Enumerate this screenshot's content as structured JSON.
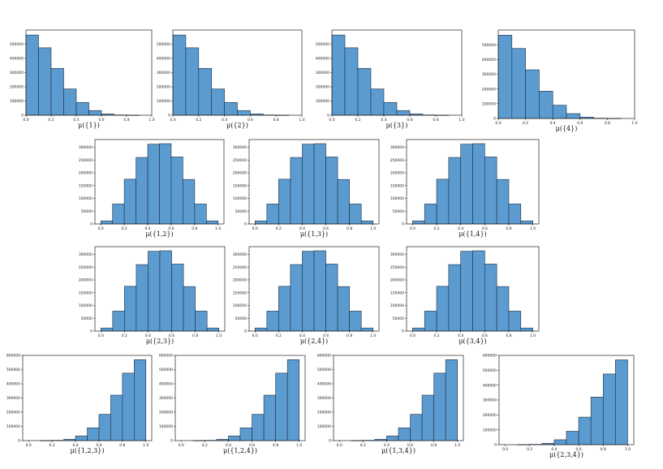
{
  "chart_data": [
    {
      "type": "bar",
      "xlabel": "μ({1})",
      "xticks": [
        "0.0",
        "0.2",
        "0.4",
        "0.6",
        "0.8",
        "1.0"
      ],
      "yticks": [
        "0",
        "100000",
        "200000",
        "300000",
        "400000",
        "500000"
      ],
      "xlim": [
        0,
        1
      ],
      "ylim": [
        0,
        600000
      ],
      "bins": [
        [
          0,
          0.1
        ],
        [
          0.1,
          0.2
        ],
        [
          0.2,
          0.3
        ],
        [
          0.3,
          0.4
        ],
        [
          0.4,
          0.5
        ],
        [
          0.5,
          0.6
        ],
        [
          0.6,
          0.7
        ],
        [
          0.7,
          0.8
        ],
        [
          0.8,
          0.9
        ],
        [
          0.9,
          1.0
        ]
      ],
      "values": [
        565000,
        475000,
        330000,
        185000,
        90000,
        33000,
        9000,
        2000,
        500,
        0
      ]
    },
    {
      "type": "bar",
      "xlabel": "μ({2})",
      "xticks": [
        "0.0",
        "0.2",
        "0.4",
        "0.6",
        "0.8",
        "1.0"
      ],
      "yticks": [
        "0",
        "100000",
        "200000",
        "300000",
        "400000",
        "500000"
      ],
      "xlim": [
        0,
        1
      ],
      "ylim": [
        0,
        600000
      ],
      "bins": [
        [
          0,
          0.1
        ],
        [
          0.1,
          0.2
        ],
        [
          0.2,
          0.3
        ],
        [
          0.3,
          0.4
        ],
        [
          0.4,
          0.5
        ],
        [
          0.5,
          0.6
        ],
        [
          0.6,
          0.7
        ],
        [
          0.7,
          0.8
        ],
        [
          0.8,
          0.9
        ],
        [
          0.9,
          1.0
        ]
      ],
      "values": [
        565000,
        475000,
        330000,
        185000,
        90000,
        33000,
        9000,
        2000,
        500,
        0
      ]
    },
    {
      "type": "bar",
      "xlabel": "μ({3})",
      "xticks": [
        "0.0",
        "0.2",
        "0.4",
        "0.6",
        "0.8",
        "1.0"
      ],
      "yticks": [
        "0",
        "100000",
        "200000",
        "300000",
        "400000",
        "500000"
      ],
      "xlim": [
        0,
        1
      ],
      "ylim": [
        0,
        600000
      ],
      "bins": [
        [
          0,
          0.1
        ],
        [
          0.1,
          0.2
        ],
        [
          0.2,
          0.3
        ],
        [
          0.3,
          0.4
        ],
        [
          0.4,
          0.5
        ],
        [
          0.5,
          0.6
        ],
        [
          0.6,
          0.7
        ],
        [
          0.7,
          0.8
        ],
        [
          0.8,
          0.9
        ],
        [
          0.9,
          1.0
        ]
      ],
      "values": [
        565000,
        475000,
        330000,
        185000,
        90000,
        33000,
        9000,
        2000,
        500,
        0
      ]
    },
    {
      "type": "bar",
      "xlabel": "μ({4})",
      "xticks": [
        "0.0",
        "0.2",
        "0.4",
        "0.6",
        "0.8",
        "1.0"
      ],
      "yticks": [
        "0",
        "100000",
        "200000",
        "300000",
        "400000",
        "500000"
      ],
      "xlim": [
        0,
        1
      ],
      "ylim": [
        0,
        600000
      ],
      "bins": [
        [
          0,
          0.1
        ],
        [
          0.1,
          0.2
        ],
        [
          0.2,
          0.3
        ],
        [
          0.3,
          0.4
        ],
        [
          0.4,
          0.5
        ],
        [
          0.5,
          0.6
        ],
        [
          0.6,
          0.7
        ],
        [
          0.7,
          0.8
        ],
        [
          0.8,
          0.9
        ],
        [
          0.9,
          1.0
        ]
      ],
      "values": [
        565000,
        475000,
        330000,
        185000,
        90000,
        33000,
        9000,
        2000,
        500,
        0
      ]
    },
    {
      "type": "bar",
      "xlabel": "μ({1,2})",
      "xticks": [
        "0.0",
        "0.2",
        "0.4",
        "0.6",
        "0.8",
        "1.0"
      ],
      "yticks": [
        "0",
        "50000",
        "100000",
        "150000",
        "200000",
        "250000",
        "300000"
      ],
      "xlim": [
        -0.05,
        1.05
      ],
      "ylim": [
        0,
        330000
      ],
      "bins": [
        [
          0,
          0.1
        ],
        [
          0.1,
          0.2
        ],
        [
          0.2,
          0.3
        ],
        [
          0.3,
          0.4
        ],
        [
          0.4,
          0.5
        ],
        [
          0.5,
          0.6
        ],
        [
          0.6,
          0.7
        ],
        [
          0.7,
          0.8
        ],
        [
          0.8,
          0.9
        ],
        [
          0.9,
          1.0
        ]
      ],
      "values": [
        12000,
        78000,
        175000,
        260000,
        312000,
        314000,
        262000,
        174000,
        78000,
        12000
      ]
    },
    {
      "type": "bar",
      "xlabel": "μ({1,3})",
      "xticks": [
        "0.0",
        "0.2",
        "0.4",
        "0.6",
        "0.8",
        "1.0"
      ],
      "yticks": [
        "0",
        "50000",
        "100000",
        "150000",
        "200000",
        "250000",
        "300000"
      ],
      "xlim": [
        -0.05,
        1.05
      ],
      "ylim": [
        0,
        330000
      ],
      "bins": [
        [
          0,
          0.1
        ],
        [
          0.1,
          0.2
        ],
        [
          0.2,
          0.3
        ],
        [
          0.3,
          0.4
        ],
        [
          0.4,
          0.5
        ],
        [
          0.5,
          0.6
        ],
        [
          0.6,
          0.7
        ],
        [
          0.7,
          0.8
        ],
        [
          0.8,
          0.9
        ],
        [
          0.9,
          1.0
        ]
      ],
      "values": [
        12000,
        78000,
        175000,
        260000,
        312000,
        314000,
        262000,
        174000,
        78000,
        12000
      ]
    },
    {
      "type": "bar",
      "xlabel": "μ({1,4})",
      "xticks": [
        "0.0",
        "0.2",
        "0.4",
        "0.6",
        "0.8",
        "1.0"
      ],
      "yticks": [
        "0",
        "50000",
        "100000",
        "150000",
        "200000",
        "250000",
        "300000"
      ],
      "xlim": [
        -0.05,
        1.05
      ],
      "ylim": [
        0,
        330000
      ],
      "bins": [
        [
          0,
          0.1
        ],
        [
          0.1,
          0.2
        ],
        [
          0.2,
          0.3
        ],
        [
          0.3,
          0.4
        ],
        [
          0.4,
          0.5
        ],
        [
          0.5,
          0.6
        ],
        [
          0.6,
          0.7
        ],
        [
          0.7,
          0.8
        ],
        [
          0.8,
          0.9
        ],
        [
          0.9,
          1.0
        ]
      ],
      "values": [
        12000,
        78000,
        175000,
        260000,
        312000,
        314000,
        262000,
        174000,
        78000,
        12000
      ]
    },
    {
      "type": "bar",
      "xlabel": "μ({2,3})",
      "xticks": [
        "0.0",
        "0.2",
        "0.4",
        "0.6",
        "0.8",
        "1.0"
      ],
      "yticks": [
        "0",
        "50000",
        "100000",
        "150000",
        "200000",
        "250000",
        "300000"
      ],
      "xlim": [
        -0.05,
        1.05
      ],
      "ylim": [
        0,
        330000
      ],
      "bins": [
        [
          0,
          0.1
        ],
        [
          0.1,
          0.2
        ],
        [
          0.2,
          0.3
        ],
        [
          0.3,
          0.4
        ],
        [
          0.4,
          0.5
        ],
        [
          0.5,
          0.6
        ],
        [
          0.6,
          0.7
        ],
        [
          0.7,
          0.8
        ],
        [
          0.8,
          0.9
        ],
        [
          0.9,
          1.0
        ]
      ],
      "values": [
        12000,
        78000,
        175000,
        260000,
        312000,
        314000,
        262000,
        174000,
        78000,
        12000
      ]
    },
    {
      "type": "bar",
      "xlabel": "μ({2,4})",
      "xticks": [
        "0.0",
        "0.2",
        "0.4",
        "0.6",
        "0.8",
        "1.0"
      ],
      "yticks": [
        "0",
        "50000",
        "100000",
        "150000",
        "200000",
        "250000",
        "300000"
      ],
      "xlim": [
        -0.05,
        1.05
      ],
      "ylim": [
        0,
        330000
      ],
      "bins": [
        [
          0,
          0.1
        ],
        [
          0.1,
          0.2
        ],
        [
          0.2,
          0.3
        ],
        [
          0.3,
          0.4
        ],
        [
          0.4,
          0.5
        ],
        [
          0.5,
          0.6
        ],
        [
          0.6,
          0.7
        ],
        [
          0.7,
          0.8
        ],
        [
          0.8,
          0.9
        ],
        [
          0.9,
          1.0
        ]
      ],
      "values": [
        12000,
        78000,
        175000,
        260000,
        312000,
        314000,
        262000,
        174000,
        78000,
        12000
      ]
    },
    {
      "type": "bar",
      "xlabel": "μ({3,4})",
      "xticks": [
        "0.0",
        "0.2",
        "0.4",
        "0.6",
        "0.8",
        "1.0"
      ],
      "yticks": [
        "0",
        "50000",
        "100000",
        "150000",
        "200000",
        "250000",
        "300000"
      ],
      "xlim": [
        -0.05,
        1.05
      ],
      "ylim": [
        0,
        330000
      ],
      "bins": [
        [
          0,
          0.1
        ],
        [
          0.1,
          0.2
        ],
        [
          0.2,
          0.3
        ],
        [
          0.3,
          0.4
        ],
        [
          0.4,
          0.5
        ],
        [
          0.5,
          0.6
        ],
        [
          0.6,
          0.7
        ],
        [
          0.7,
          0.8
        ],
        [
          0.8,
          0.9
        ],
        [
          0.9,
          1.0
        ]
      ],
      "values": [
        12000,
        78000,
        175000,
        260000,
        312000,
        314000,
        262000,
        174000,
        78000,
        12000
      ]
    },
    {
      "type": "bar",
      "xlabel": "μ({1,2,3})",
      "xticks": [
        "0.0",
        "0.2",
        "0.4",
        "0.6",
        "0.8",
        "1.0"
      ],
      "yticks": [
        "0",
        "100000",
        "200000",
        "300000",
        "400000",
        "500000",
        "600000"
      ],
      "xlim": [
        -0.05,
        1.05
      ],
      "ylim": [
        0,
        600000
      ],
      "bins": [
        [
          0,
          0.1
        ],
        [
          0.1,
          0.2
        ],
        [
          0.2,
          0.3
        ],
        [
          0.3,
          0.4
        ],
        [
          0.4,
          0.5
        ],
        [
          0.5,
          0.6
        ],
        [
          0.6,
          0.7
        ],
        [
          0.7,
          0.8
        ],
        [
          0.8,
          0.9
        ],
        [
          0.9,
          1.0
        ]
      ],
      "values": [
        0,
        500,
        2000,
        9000,
        33000,
        90000,
        185000,
        320000,
        475000,
        570000
      ]
    },
    {
      "type": "bar",
      "xlabel": "μ({1,2,4})",
      "xticks": [
        "0.0",
        "0.2",
        "0.4",
        "0.6",
        "0.8",
        "1.0"
      ],
      "yticks": [
        "0",
        "100000",
        "200000",
        "300000",
        "400000",
        "500000",
        "600000"
      ],
      "xlim": [
        -0.05,
        1.05
      ],
      "ylim": [
        0,
        600000
      ],
      "bins": [
        [
          0,
          0.1
        ],
        [
          0.1,
          0.2
        ],
        [
          0.2,
          0.3
        ],
        [
          0.3,
          0.4
        ],
        [
          0.4,
          0.5
        ],
        [
          0.5,
          0.6
        ],
        [
          0.6,
          0.7
        ],
        [
          0.7,
          0.8
        ],
        [
          0.8,
          0.9
        ],
        [
          0.9,
          1.0
        ]
      ],
      "values": [
        0,
        500,
        2000,
        9000,
        33000,
        90000,
        185000,
        320000,
        475000,
        570000
      ]
    },
    {
      "type": "bar",
      "xlabel": "μ({1,3,4})",
      "xticks": [
        "0.0",
        "0.2",
        "0.4",
        "0.6",
        "0.8",
        "1.0"
      ],
      "yticks": [
        "0",
        "100000",
        "200000",
        "300000",
        "400000",
        "500000",
        "600000"
      ],
      "xlim": [
        -0.05,
        1.05
      ],
      "ylim": [
        0,
        600000
      ],
      "bins": [
        [
          0,
          0.1
        ],
        [
          0.1,
          0.2
        ],
        [
          0.2,
          0.3
        ],
        [
          0.3,
          0.4
        ],
        [
          0.4,
          0.5
        ],
        [
          0.5,
          0.6
        ],
        [
          0.6,
          0.7
        ],
        [
          0.7,
          0.8
        ],
        [
          0.8,
          0.9
        ],
        [
          0.9,
          1.0
        ]
      ],
      "values": [
        0,
        500,
        2000,
        9000,
        33000,
        90000,
        185000,
        320000,
        475000,
        570000
      ]
    },
    {
      "type": "bar",
      "xlabel": "μ({2,3,4})",
      "xticks": [
        "0.0",
        "0.2",
        "0.4",
        "0.6",
        "0.8",
        "1.0"
      ],
      "yticks": [
        "0",
        "100000",
        "200000",
        "300000",
        "400000",
        "500000",
        "600000"
      ],
      "xlim": [
        -0.05,
        1.05
      ],
      "ylim": [
        0,
        600000
      ],
      "bins": [
        [
          0,
          0.1
        ],
        [
          0.1,
          0.2
        ],
        [
          0.2,
          0.3
        ],
        [
          0.3,
          0.4
        ],
        [
          0.4,
          0.5
        ],
        [
          0.5,
          0.6
        ],
        [
          0.6,
          0.7
        ],
        [
          0.7,
          0.8
        ],
        [
          0.8,
          0.9
        ],
        [
          0.9,
          1.0
        ]
      ],
      "values": [
        0,
        500,
        2000,
        9000,
        33000,
        90000,
        185000,
        320000,
        475000,
        570000
      ]
    }
  ],
  "colors": {
    "bar_fill": "#5b9bd0",
    "bar_edge": "#1f2f3f",
    "axis": "#222222"
  }
}
